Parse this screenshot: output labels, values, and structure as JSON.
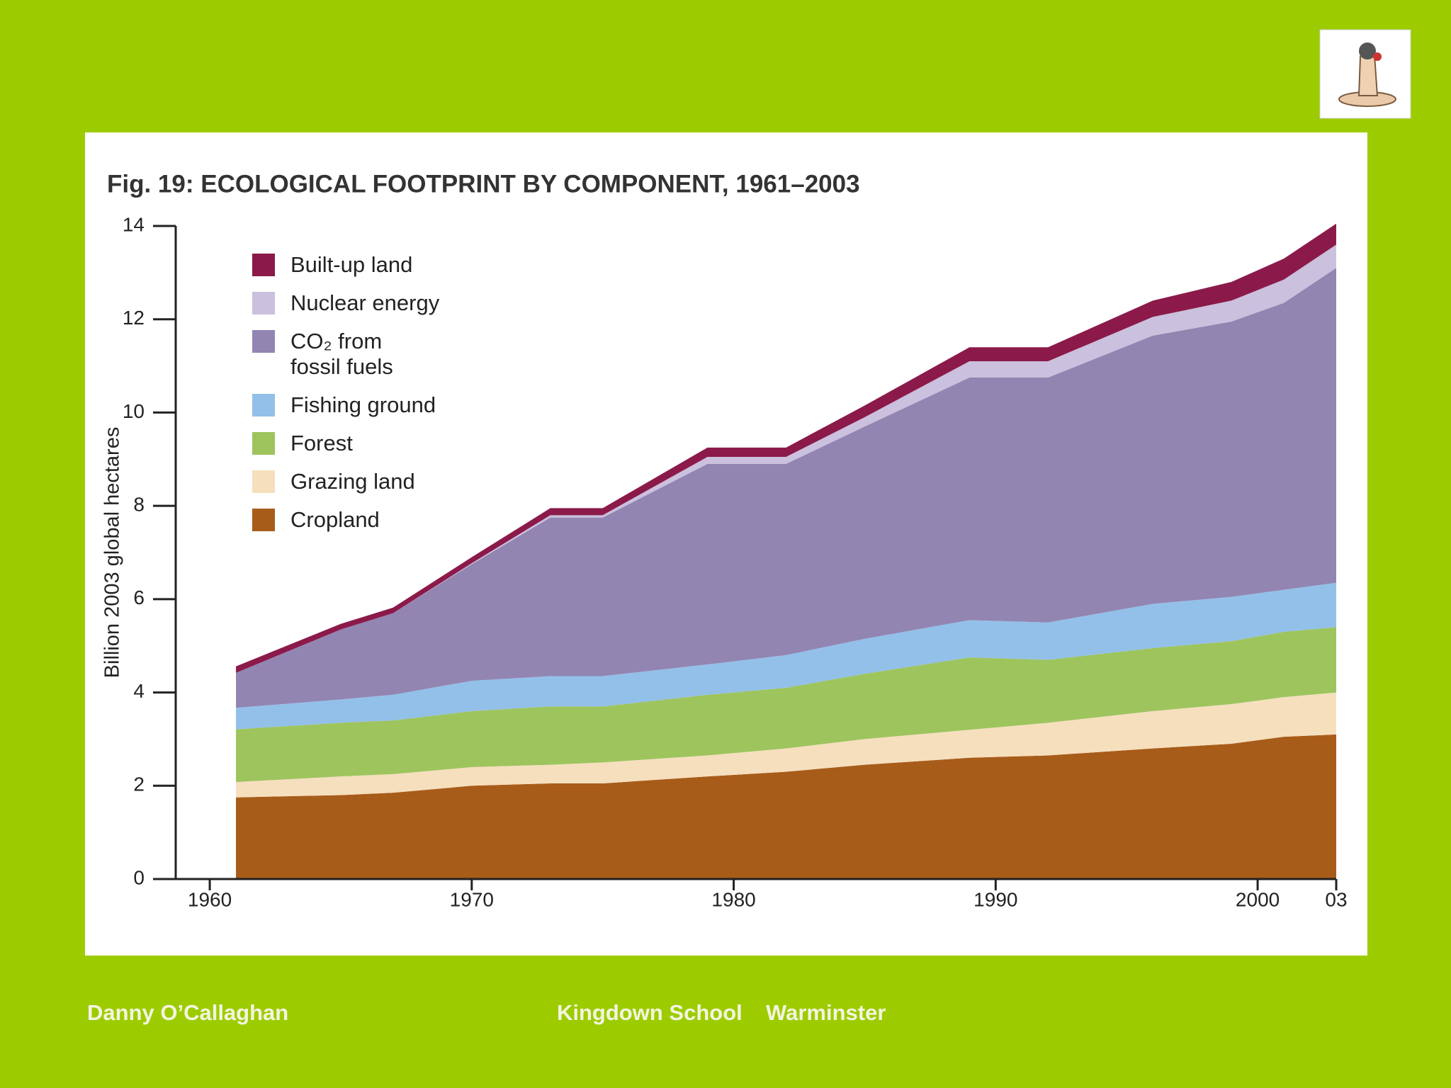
{
  "chart_data": {
    "type": "stacked-area",
    "title": "Fig. 19: ECOLOGICAL FOOTPRINT BY COMPONENT, 1961–2003",
    "y_label": "Billion 2003 global hectares",
    "x": [
      1961,
      1965,
      1967,
      1970,
      1973,
      1975,
      1979,
      1982,
      1985,
      1989,
      1992,
      1996,
      1999,
      2001,
      2003
    ],
    "series": [
      {
        "name": "Cropland",
        "color": "#a85c1a",
        "values": [
          1.75,
          1.8,
          1.85,
          2.0,
          2.05,
          2.05,
          2.2,
          2.3,
          2.45,
          2.6,
          2.65,
          2.8,
          2.9,
          3.05,
          3.1
        ]
      },
      {
        "name": "Grazing land",
        "color": "#f5dfbd",
        "values": [
          0.33,
          0.4,
          0.4,
          0.4,
          0.4,
          0.45,
          0.45,
          0.5,
          0.55,
          0.6,
          0.7,
          0.8,
          0.85,
          0.85,
          0.9
        ]
      },
      {
        "name": "Forest",
        "color": "#9ec45e",
        "values": [
          1.13,
          1.15,
          1.15,
          1.2,
          1.25,
          1.2,
          1.3,
          1.3,
          1.4,
          1.55,
          1.35,
          1.35,
          1.35,
          1.4,
          1.4
        ]
      },
      {
        "name": "Fishing ground",
        "color": "#93c0e8",
        "values": [
          0.46,
          0.5,
          0.55,
          0.65,
          0.65,
          0.65,
          0.65,
          0.7,
          0.75,
          0.8,
          0.8,
          0.95,
          0.95,
          0.9,
          0.95
        ]
      },
      {
        "name": "CO₂ from fossil fuels",
        "color": "#9285b2",
        "values": [
          0.75,
          1.5,
          1.75,
          2.5,
          3.4,
          3.4,
          4.3,
          4.1,
          4.55,
          5.2,
          5.25,
          5.75,
          5.9,
          6.15,
          6.75
        ]
      },
      {
        "name": "Nuclear energy",
        "color": "#cbc0dd",
        "values": [
          0,
          0,
          0,
          0.02,
          0.05,
          0.05,
          0.15,
          0.15,
          0.2,
          0.35,
          0.35,
          0.4,
          0.45,
          0.5,
          0.5
        ]
      },
      {
        "name": "Built-up land",
        "color": "#8b1a4a",
        "values": [
          0.14,
          0.12,
          0.12,
          0.13,
          0.15,
          0.15,
          0.2,
          0.2,
          0.25,
          0.3,
          0.3,
          0.35,
          0.4,
          0.45,
          0.45
        ]
      }
    ],
    "xlim": [
      1958.7,
      2003
    ],
    "xticks": [
      1960,
      1970,
      1980,
      1990,
      2000,
      {
        "value": 2003,
        "label": "03"
      }
    ],
    "ylim": [
      0,
      14
    ],
    "yticks": [
      0,
      2,
      4,
      6,
      8,
      10,
      12,
      14
    ]
  },
  "footer": {
    "author": "Danny O’Callaghan",
    "school": "Kingdown School",
    "town": "Warminster"
  }
}
